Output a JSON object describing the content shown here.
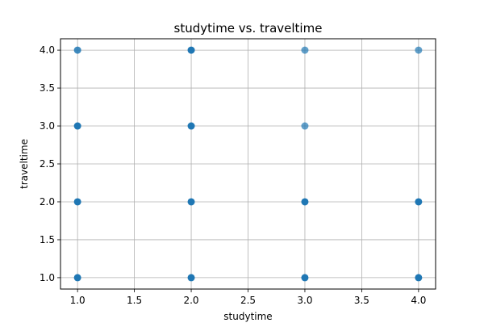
{
  "chart_data": {
    "type": "scatter",
    "title": "studytime vs. traveltime",
    "xlabel": "studytime",
    "ylabel": "traveltime",
    "xlim": [
      0.85,
      4.15
    ],
    "ylim": [
      0.85,
      4.15
    ],
    "xticks": [
      "1.0",
      "1.5",
      "2.0",
      "2.5",
      "3.0",
      "3.5",
      "4.0"
    ],
    "yticks": [
      "1.0",
      "1.5",
      "2.0",
      "2.5",
      "3.0",
      "3.5",
      "4.0"
    ],
    "grid": true,
    "legend": "none",
    "point_color": "#1f77b4",
    "points": [
      {
        "x": 1,
        "y": 1,
        "density": "high"
      },
      {
        "x": 1,
        "y": 2,
        "density": "high"
      },
      {
        "x": 1,
        "y": 3,
        "density": "high"
      },
      {
        "x": 1,
        "y": 4,
        "density": "medium"
      },
      {
        "x": 2,
        "y": 1,
        "density": "high"
      },
      {
        "x": 2,
        "y": 2,
        "density": "high"
      },
      {
        "x": 2,
        "y": 3,
        "density": "high"
      },
      {
        "x": 2,
        "y": 4,
        "density": "high"
      },
      {
        "x": 3,
        "y": 1,
        "density": "high"
      },
      {
        "x": 3,
        "y": 2,
        "density": "high"
      },
      {
        "x": 3,
        "y": 3,
        "density": "low"
      },
      {
        "x": 3,
        "y": 4,
        "density": "low"
      },
      {
        "x": 4,
        "y": 1,
        "density": "high"
      },
      {
        "x": 4,
        "y": 2,
        "density": "high"
      },
      {
        "x": 4,
        "y": 4,
        "density": "low"
      }
    ]
  }
}
